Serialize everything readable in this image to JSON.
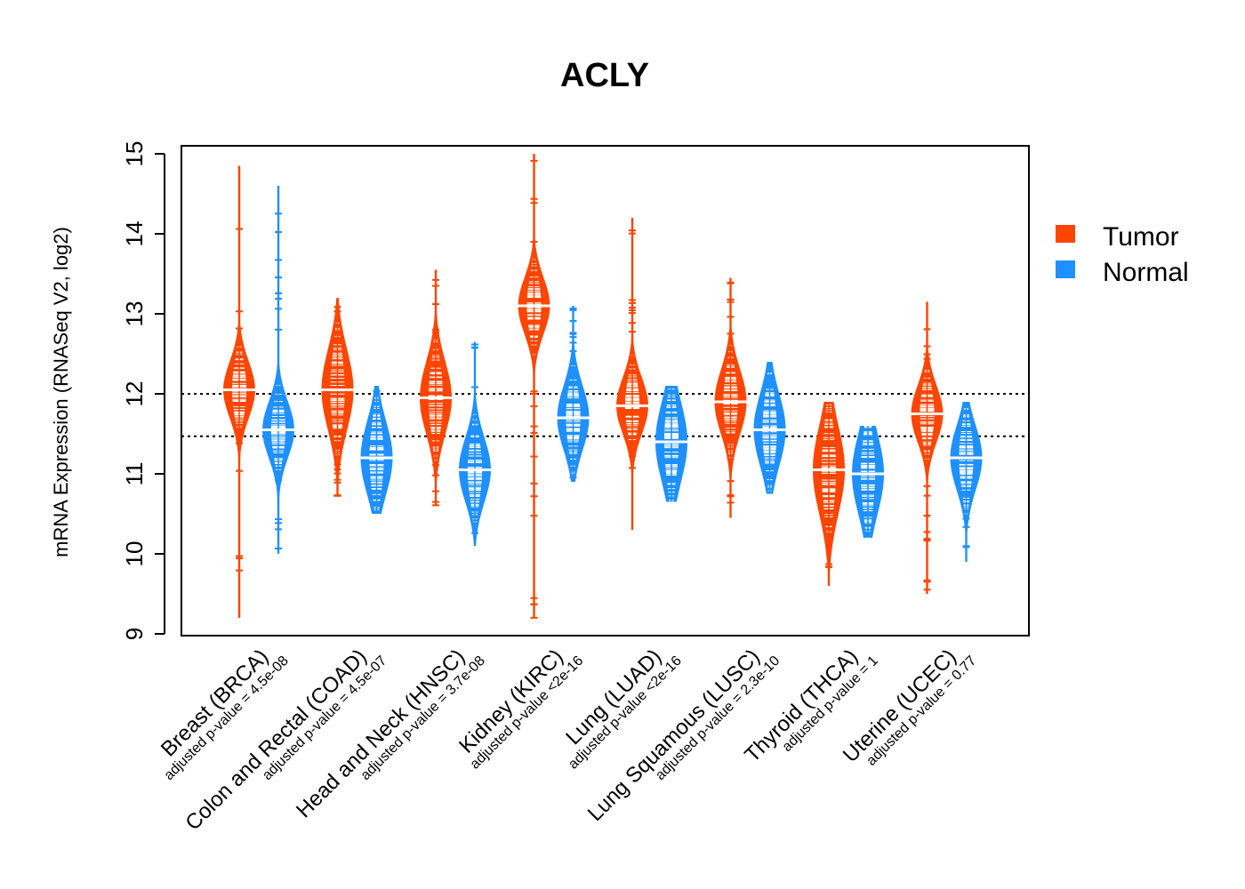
{
  "chart_data": {
    "type": "beanplot",
    "title": "ACLY",
    "xlabel": "",
    "ylabel": "mRNA Expression (RNASeq V2, log2)",
    "ylim": [
      9,
      15
    ],
    "yticks": [
      "9",
      "10",
      "11",
      "12",
      "13",
      "14",
      "15"
    ],
    "reference_lines": [
      12.0,
      11.47
    ],
    "legend": {
      "position": "right",
      "entries": [
        {
          "name": "Tumor",
          "color": "#ff4500"
        },
        {
          "name": "Normal",
          "color": "#1e90ff"
        }
      ]
    },
    "categories": [
      {
        "label": "Breast (BRCA)",
        "pvalue": "adjusted p-value = 4.5e-08",
        "tumor": {
          "min": 9.2,
          "max": 14.85,
          "center": 12.05,
          "width": 0.35
        },
        "normal": {
          "min": 10.0,
          "max": 14.6,
          "center": 11.55,
          "width": 0.35
        }
      },
      {
        "label": "Colon and Rectal (COAD)",
        "pvalue": "adjusted p-value = 4.5e-07",
        "tumor": {
          "min": 10.72,
          "max": 13.2,
          "center": 12.05,
          "width": 0.5
        },
        "normal": {
          "min": 10.5,
          "max": 12.1,
          "center": 11.2,
          "width": 0.45
        }
      },
      {
        "label": "Head and Neck (HNSC)",
        "pvalue": "adjusted p-value = 3.7e-08",
        "tumor": {
          "min": 10.6,
          "max": 13.55,
          "center": 11.95,
          "width": 0.45
        },
        "normal": {
          "min": 10.1,
          "max": 12.65,
          "center": 11.05,
          "width": 0.4
        }
      },
      {
        "label": "Kidney (KIRC)",
        "pvalue": "adjusted p-value <2e-16",
        "tumor": {
          "min": 9.2,
          "max": 15.0,
          "center": 13.1,
          "width": 0.35
        },
        "normal": {
          "min": 10.9,
          "max": 13.1,
          "center": 11.7,
          "width": 0.4
        }
      },
      {
        "label": "Lung (LUAD)",
        "pvalue": "adjusted p-value <2e-16",
        "tumor": {
          "min": 10.3,
          "max": 14.2,
          "center": 11.85,
          "width": 0.35
        },
        "normal": {
          "min": 10.65,
          "max": 12.1,
          "center": 11.4,
          "width": 0.5
        }
      },
      {
        "label": "Lung Squamous (LUSC)",
        "pvalue": "adjusted p-value = 2.3e-10",
        "tumor": {
          "min": 10.45,
          "max": 13.45,
          "center": 11.9,
          "width": 0.4
        },
        "normal": {
          "min": 10.75,
          "max": 12.4,
          "center": 11.55,
          "width": 0.45
        }
      },
      {
        "label": "Thyroid (THCA)",
        "pvalue": "adjusted p-value = 1",
        "tumor": {
          "min": 9.6,
          "max": 11.9,
          "center": 11.05,
          "width": 0.55
        },
        "normal": {
          "min": 10.2,
          "max": 11.6,
          "center": 11.0,
          "width": 0.5
        }
      },
      {
        "label": "Uterine (UCEC)",
        "pvalue": "adjusted p-value = 0.77",
        "tumor": {
          "min": 9.5,
          "max": 13.15,
          "center": 11.75,
          "width": 0.35
        },
        "normal": {
          "min": 9.9,
          "max": 11.9,
          "center": 11.2,
          "width": 0.4
        }
      }
    ]
  },
  "colors": {
    "tumor": "#ff4500",
    "normal": "#1e90ff",
    "axis": "#000000"
  }
}
